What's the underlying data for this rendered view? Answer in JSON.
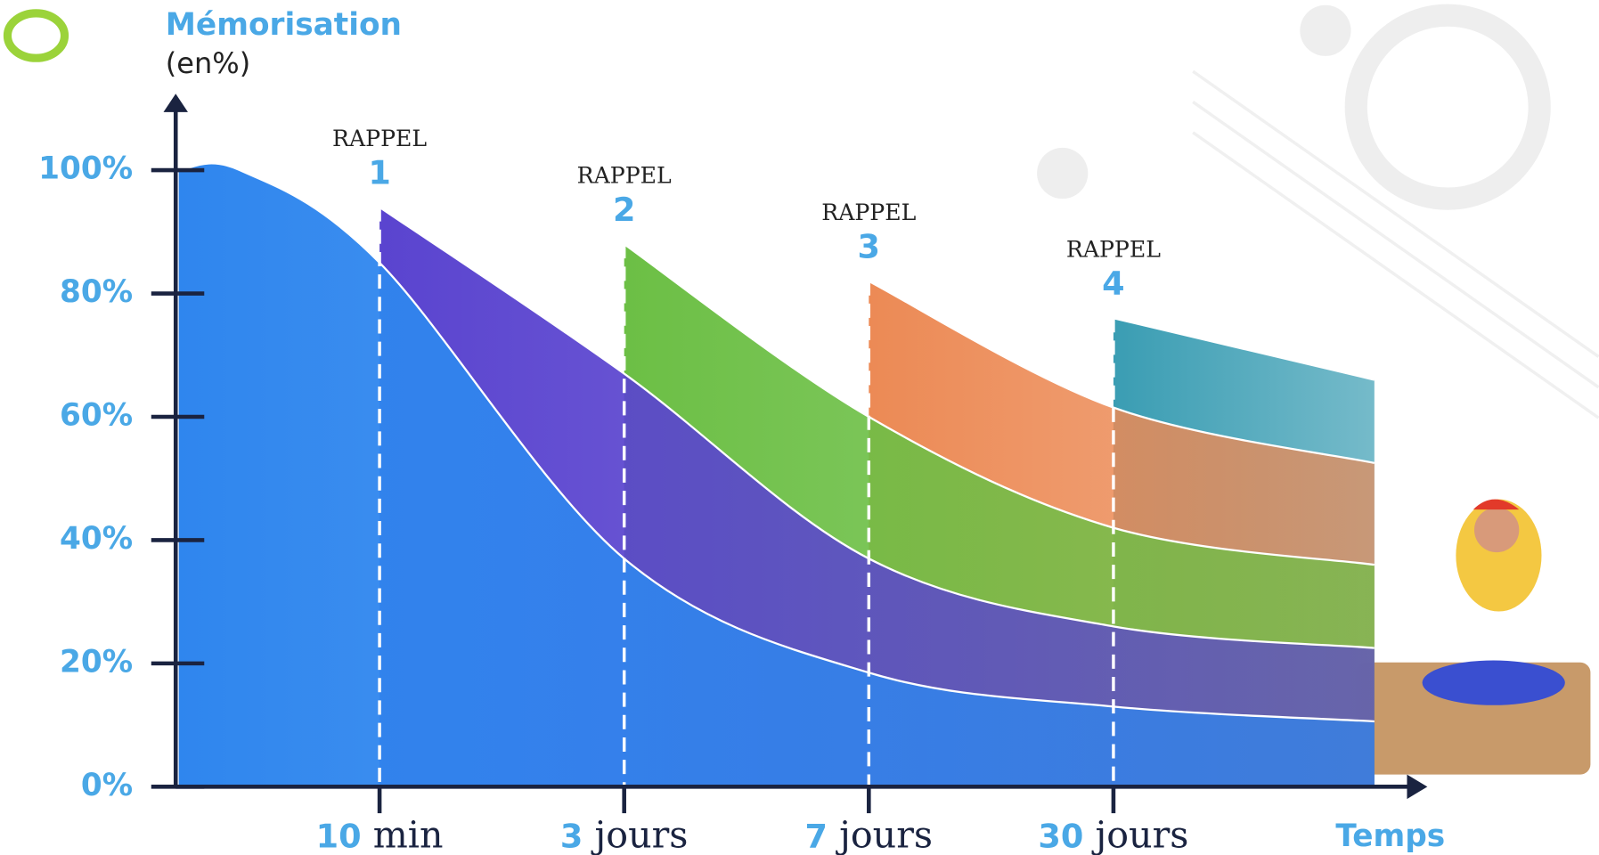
{
  "chart_data": {
    "type": "area",
    "y_label": "Mémorisation",
    "y_unit": "(en%)",
    "x_label": "Temps",
    "categories": [
      null,
      "10 min",
      "3 jours",
      "7 jours",
      "30 jours",
      null
    ],
    "ylim": [
      0,
      100
    ],
    "yticks": [
      {
        "value": 0,
        "label": "0%"
      },
      {
        "value": 20,
        "label": "20%"
      },
      {
        "value": 40,
        "label": "40%"
      },
      {
        "value": 60,
        "label": "60%"
      },
      {
        "value": 80,
        "label": "80%"
      },
      {
        "value": 100,
        "label": "100%"
      }
    ],
    "series": [
      {
        "color": "#2f86ee",
        "values": [
          100,
          85,
          37,
          18.5,
          13,
          10.6
        ]
      },
      {
        "color": "#5a44cf",
        "values": [
          null,
          94,
          67,
          37,
          26,
          22.5
        ]
      },
      {
        "color": "#6cbf45",
        "values": [
          null,
          null,
          88,
          60,
          42,
          36
        ]
      },
      {
        "color": "#ec8a55",
        "values": [
          null,
          null,
          null,
          82,
          61.5,
          52.5
        ]
      },
      {
        "color": "#3a9db3",
        "values": [
          null,
          null,
          null,
          null,
          76,
          66
        ]
      }
    ],
    "annotations": [
      {
        "text": "RAPPEL",
        "number": "1"
      },
      {
        "text": "RAPPEL",
        "number": "2"
      },
      {
        "text": "RAPPEL",
        "number": "3"
      },
      {
        "text": "RAPPEL",
        "number": "4"
      }
    ]
  }
}
